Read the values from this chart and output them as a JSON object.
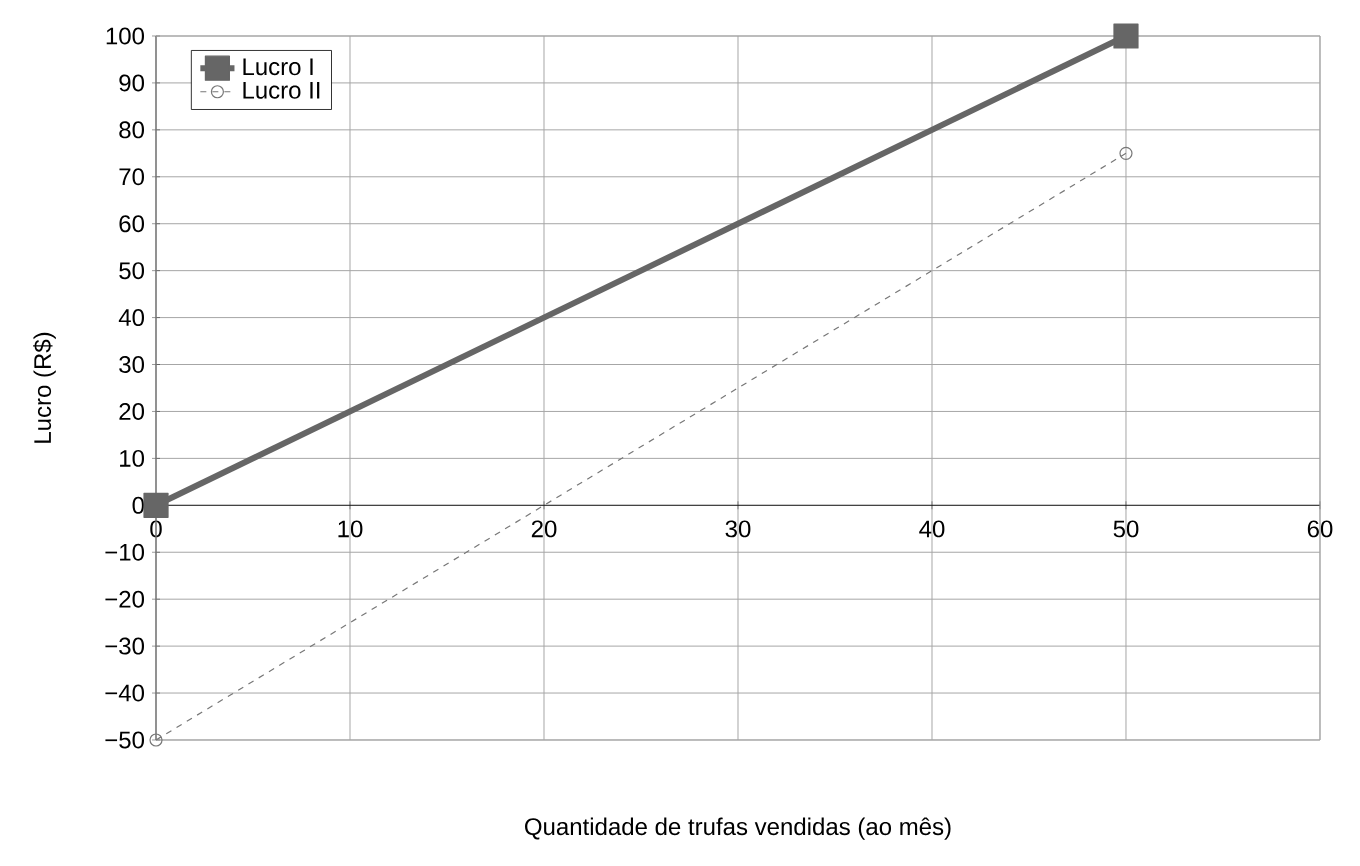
{
  "chart_data": {
    "type": "line",
    "xlabel": "Quantidade de trufas vendidas (ao mês)",
    "ylabel": "Lucro (R$)",
    "xlim": [
      0,
      60
    ],
    "xticks": [
      0,
      10,
      20,
      30,
      40,
      50,
      60
    ],
    "ylim": [
      -50,
      100
    ],
    "yticks": [
      {
        "value": -50,
        "label": "−50"
      },
      {
        "value": -40,
        "label": "−40"
      },
      {
        "value": -30,
        "label": "−30"
      },
      {
        "value": -20,
        "label": "−20"
      },
      {
        "value": -10,
        "label": "−10"
      },
      0,
      10,
      20,
      30,
      40,
      50,
      60,
      70,
      80,
      90,
      100
    ],
    "grid": true,
    "legend": "top left",
    "x": [
      0,
      50
    ],
    "series": [
      {
        "name": "Lucro I",
        "color": "#666666",
        "values": [
          0,
          100
        ],
        "marker": "square",
        "line_style": "solid"
      },
      {
        "name": "Lucro II",
        "color": "#777777",
        "values": [
          -50,
          75
        ],
        "marker": "circle",
        "line_style": "dashed"
      }
    ]
  }
}
